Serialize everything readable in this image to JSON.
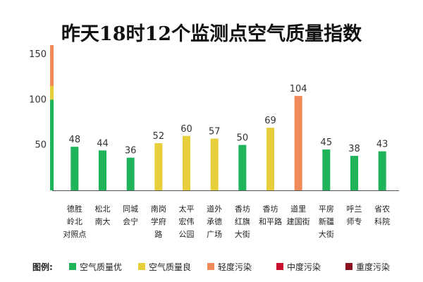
{
  "chart_data": {
    "type": "bar",
    "title": "昨天18时12个监测点空气质量指数",
    "xlabel": "",
    "ylabel": "",
    "ylim": [
      0,
      160
    ],
    "yticks": [
      50,
      100,
      150
    ],
    "scale_bands": [
      {
        "from": 0,
        "to": 100,
        "color": "#1fb35a"
      },
      {
        "from": 100,
        "to": 115,
        "color": "#e6cf3a"
      },
      {
        "from": 115,
        "to": 160,
        "color": "#f08a59"
      }
    ],
    "categories": [
      [
        "德胜",
        "岭北",
        "对照点"
      ],
      [
        "松北",
        "南大"
      ],
      [
        "同城",
        "会宁"
      ],
      [
        "南岗",
        "学府",
        "路"
      ],
      [
        "太平",
        "宏伟",
        "公园"
      ],
      [
        "道外",
        "承德",
        "广场"
      ],
      [
        "香坊",
        "红旗",
        "大街"
      ],
      [
        "香坊",
        "和平路"
      ],
      [
        "道里",
        "建国街"
      ],
      [
        "平房",
        "新疆",
        "大街"
      ],
      [
        "呼兰",
        "师专"
      ],
      [
        "省农",
        "科院"
      ]
    ],
    "values": [
      48,
      44,
      36,
      52,
      60,
      57,
      50,
      69,
      104,
      45,
      38,
      43
    ],
    "bar_colors": [
      "#1fb35a",
      "#1fb35a",
      "#1fb35a",
      "#e6cf3a",
      "#e6cf3a",
      "#e6cf3a",
      "#1fb35a",
      "#e6cf3a",
      "#f08a59",
      "#1fb35a",
      "#1fb35a",
      "#1fb35a"
    ],
    "legend": {
      "label": "图例:",
      "items": [
        {
          "name": "空气质量优",
          "color": "#1fb35a"
        },
        {
          "name": "空气质量良",
          "color": "#e6cf3a"
        },
        {
          "name": "轻度污染",
          "color": "#f08a59"
        },
        {
          "name": "中度污染",
          "color": "#c8102e"
        },
        {
          "name": "重度污染",
          "color": "#8a1020"
        }
      ]
    }
  }
}
